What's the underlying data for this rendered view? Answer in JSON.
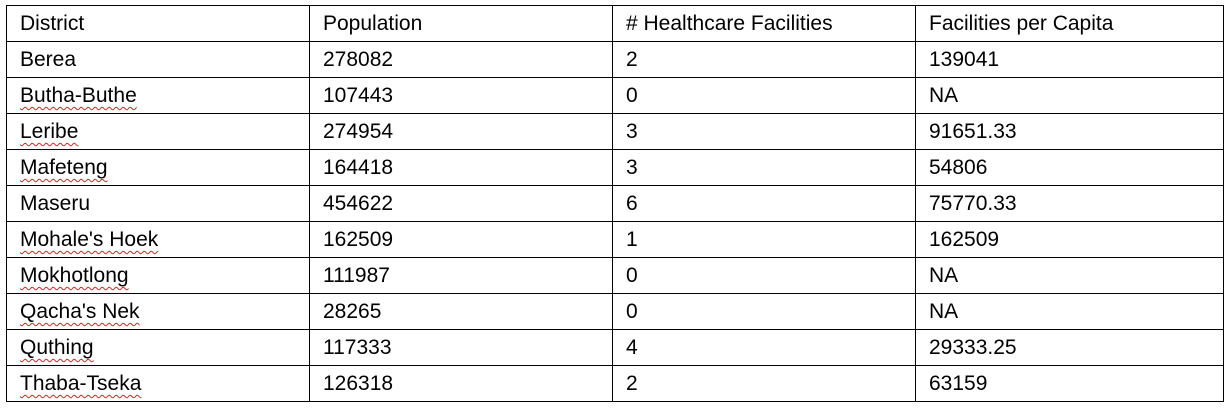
{
  "table": {
    "headers": [
      "District",
      "Population",
      "# Healthcare Facilities",
      "Facilities per Capita"
    ],
    "rows": [
      {
        "district": "Berea",
        "population": "278082",
        "facilities": "2",
        "per_capita": "139041",
        "spell_flag": false
      },
      {
        "district": "Butha-Buthe",
        "population": "107443",
        "facilities": "0",
        "per_capita": "NA",
        "spell_flag": true
      },
      {
        "district": "Leribe",
        "population": "274954",
        "facilities": "3",
        "per_capita": "91651.33",
        "spell_flag": true
      },
      {
        "district": "Mafeteng",
        "population": "164418",
        "facilities": "3",
        "per_capita": "54806",
        "spell_flag": true
      },
      {
        "district": "Maseru",
        "population": "454622",
        "facilities": "6",
        "per_capita": "75770.33",
        "spell_flag": false
      },
      {
        "district": "Mohale's Hoek",
        "population": "162509",
        "facilities": "1",
        "per_capita": "162509",
        "spell_flag": true
      },
      {
        "district": "Mokhotlong",
        "population": "111987",
        "facilities": "0",
        "per_capita": "NA",
        "spell_flag": true
      },
      {
        "district": "Qacha's Nek",
        "population": "28265",
        "facilities": "0",
        "per_capita": "NA",
        "spell_flag": true
      },
      {
        "district": "Quthing",
        "population": "117333",
        "facilities": "4",
        "per_capita": "29333.25",
        "spell_flag": true
      },
      {
        "district": "Thaba-Tseka",
        "population": "126318",
        "facilities": "2",
        "per_capita": "63159",
        "spell_flag": true
      }
    ]
  },
  "colors": {
    "border": "#000000",
    "text": "#000000",
    "spellcheck_underline": "#e02020",
    "background": "#ffffff"
  }
}
